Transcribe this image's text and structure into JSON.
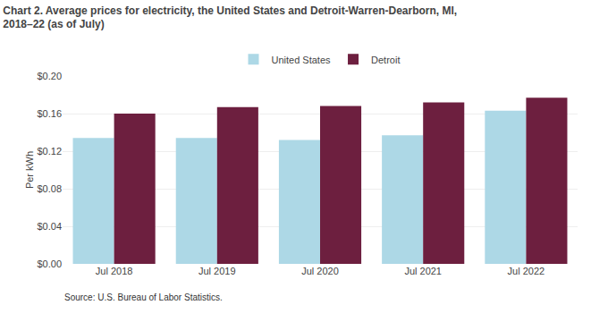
{
  "chart_data": {
    "type": "bar",
    "title": "Chart 2. Average prices for electricity, the United States and Detroit-Warren-Dearborn, MI,",
    "subtitle": "2018–22 (as of July)",
    "ylabel": "Per kWh",
    "annotations": [
      "Source: U.S. Bureau of Labor Statistics."
    ],
    "categories": [
      "Jul 2018",
      "Jul 2019",
      "Jul 2020",
      "Jul 2021",
      "Jul 2022"
    ],
    "series": [
      {
        "name": "United States",
        "color": "#add8e6",
        "values": [
          0.134,
          0.134,
          0.132,
          0.137,
          0.163
        ]
      },
      {
        "name": "Detroit",
        "color": "#6d1f3f",
        "values": [
          0.16,
          0.167,
          0.168,
          0.172,
          0.177
        ]
      }
    ],
    "ylim": [
      0,
      0.2
    ],
    "yticks": [
      {
        "value": 0.0,
        "label": "$0.00"
      },
      {
        "value": 0.04,
        "label": "$0.04"
      },
      {
        "value": 0.08,
        "label": "$0.08"
      },
      {
        "value": 0.12,
        "label": "$0.12"
      },
      {
        "value": 0.16,
        "label": "$0.16"
      },
      {
        "value": 0.2,
        "label": "$0.20"
      }
    ],
    "grid": true,
    "legend": "top"
  }
}
